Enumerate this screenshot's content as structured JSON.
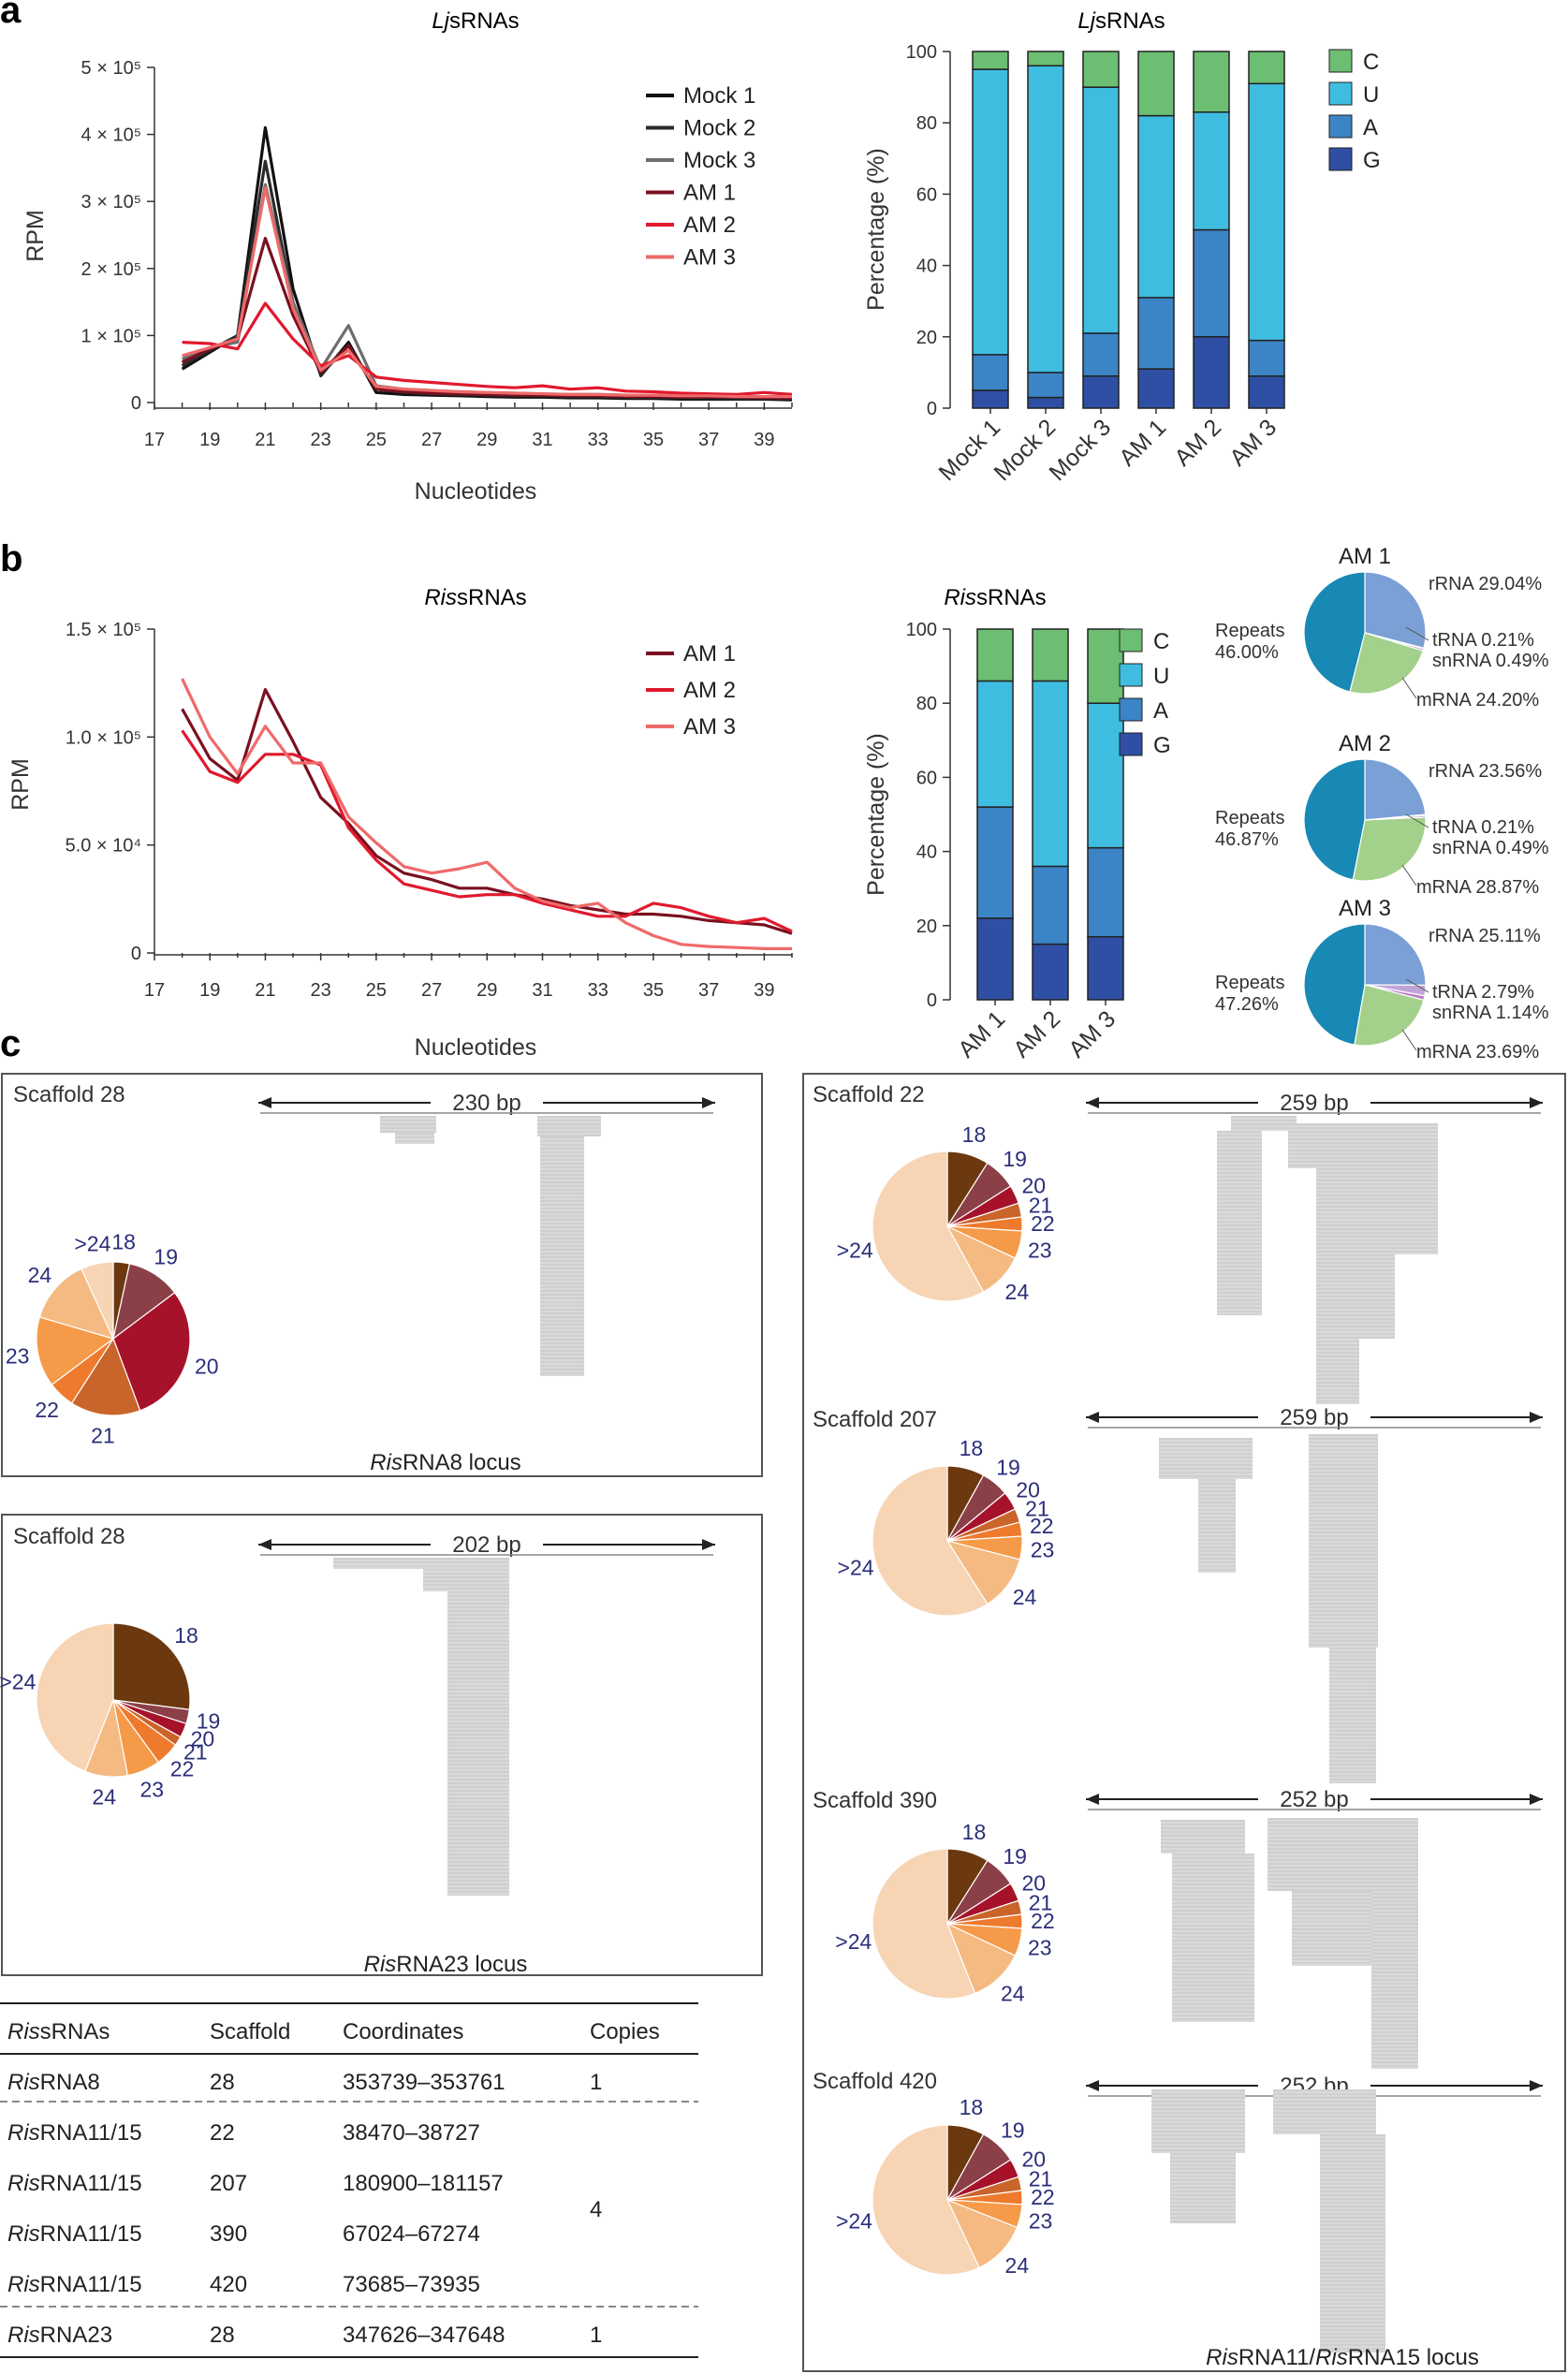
{
  "panels": {
    "a": "a",
    "b": "b",
    "c": "c"
  },
  "a_line": {
    "title_italic": "Lj",
    "title_rest": "sRNAs",
    "ylabel": "RPM",
    "xlabel": "Nucleotides",
    "ytick_labels": [
      "0",
      "1 × 10⁵",
      "2 × 10⁵",
      "3 × 10⁵",
      "4 × 10⁵",
      "5 × 10⁵"
    ],
    "xtick_labels": [
      "17",
      "19",
      "21",
      "23",
      "25",
      "27",
      "29",
      "31",
      "33",
      "35",
      "37",
      "39"
    ]
  },
  "a_bar": {
    "title_italic": "Lj",
    "title_rest": "sRNAs",
    "ylabel": "Percentage (%)",
    "ytick_labels": [
      "0",
      "20",
      "40",
      "60",
      "80",
      "100"
    ]
  },
  "b_line": {
    "title_italic": "Ris",
    "title_rest": "sRNAs",
    "ylabel": "RPM",
    "xlabel": "Nucleotides",
    "ytick_labels": [
      "0",
      "5.0 × 10⁴",
      "1.0 × 10⁵",
      "1.5 × 10⁵"
    ],
    "xtick_labels": [
      "17",
      "19",
      "21",
      "23",
      "25",
      "27",
      "29",
      "31",
      "33",
      "35",
      "37",
      "39"
    ]
  },
  "b_bar": {
    "title_italic": "Ris",
    "title_rest": "sRNAs",
    "ylabel": "Percentage (%)",
    "ytick_labels": [
      "0",
      "20",
      "40",
      "60",
      "80",
      "100"
    ]
  },
  "chart_data": [
    {
      "id": "a-line",
      "type": "line",
      "title": "LjsRNAs",
      "xlabel": "Nucleotides",
      "ylabel": "RPM",
      "xlim": [
        17,
        40
      ],
      "ylim": [
        0,
        500000
      ],
      "x": [
        18,
        19,
        20,
        21,
        22,
        23,
        24,
        25,
        26,
        27,
        28,
        29,
        30,
        31,
        32,
        33,
        34,
        35,
        36,
        37,
        38,
        39,
        40
      ],
      "series": [
        {
          "name": "Mock 1",
          "color": "#111111",
          "values": [
            50000,
            75000,
            100000,
            410000,
            170000,
            40000,
            90000,
            15000,
            12000,
            11000,
            10000,
            9000,
            8000,
            8000,
            7000,
            7000,
            6000,
            6000,
            5000,
            5000,
            5000,
            5000,
            4000
          ]
        },
        {
          "name": "Mock 2",
          "color": "#2a2a2a",
          "values": [
            55000,
            78000,
            100000,
            360000,
            150000,
            42000,
            85000,
            20000,
            15000,
            13000,
            12000,
            11000,
            10000,
            10000,
            9000,
            9000,
            8000,
            8000,
            7000,
            7000,
            6000,
            6000,
            6000
          ]
        },
        {
          "name": "Mock 3",
          "color": "#6e6e6e",
          "values": [
            65000,
            82000,
            90000,
            325000,
            150000,
            50000,
            115000,
            25000,
            20000,
            18000,
            16000,
            15000,
            14000,
            13000,
            12000,
            12000,
            11000,
            11000,
            10000,
            10000,
            9000,
            9000,
            9000
          ]
        },
        {
          "name": "AM 1",
          "color": "#7a1020",
          "values": [
            60000,
            80000,
            95000,
            245000,
            130000,
            45000,
            85000,
            20000,
            16000,
            14000,
            13000,
            12000,
            11000,
            11000,
            10000,
            10000,
            9000,
            9000,
            8000,
            8000,
            8000,
            7000,
            7000
          ]
        },
        {
          "name": "AM 2",
          "color": "#e1192d",
          "values": [
            90000,
            88000,
            80000,
            148000,
            95000,
            55000,
            70000,
            38000,
            33000,
            30000,
            27000,
            24000,
            22000,
            25000,
            20000,
            22000,
            17000,
            16000,
            14000,
            13000,
            12000,
            15000,
            12000
          ]
        },
        {
          "name": "AM 3",
          "color": "#ee6a6a",
          "values": [
            70000,
            82000,
            95000,
            320000,
            140000,
            48000,
            78000,
            24000,
            20000,
            18000,
            16000,
            15000,
            14000,
            13000,
            12000,
            12000,
            11000,
            11000,
            10000,
            10000,
            9000,
            9000,
            9000
          ]
        }
      ]
    },
    {
      "id": "a-bar",
      "type": "bar",
      "stacked": true,
      "title": "LjsRNAs",
      "ylabel": "Percentage (%)",
      "ylim": [
        0,
        100
      ],
      "categories": [
        "Mock 1",
        "Mock 2",
        "Mock 3",
        "AM 1",
        "AM 2",
        "AM 3"
      ],
      "legend": [
        "C",
        "U",
        "A",
        "G"
      ],
      "series": [
        {
          "name": "G",
          "color": "#2e4fa3",
          "values": [
            5,
            3,
            9,
            11,
            20,
            9
          ]
        },
        {
          "name": "A",
          "color": "#3b84c6",
          "values": [
            10,
            7,
            12,
            20,
            30,
            10
          ]
        },
        {
          "name": "U",
          "color": "#3fbde0",
          "values": [
            80,
            86,
            69,
            51,
            33,
            72
          ]
        },
        {
          "name": "C",
          "color": "#6cbe72",
          "values": [
            5,
            4,
            10,
            18,
            17,
            9
          ]
        }
      ]
    },
    {
      "id": "b-line",
      "type": "line",
      "title": "RissRNAs",
      "xlabel": "Nucleotides",
      "ylabel": "RPM",
      "xlim": [
        17,
        40
      ],
      "ylim": [
        0,
        150000
      ],
      "x": [
        18,
        19,
        20,
        21,
        22,
        23,
        24,
        25,
        26,
        27,
        28,
        29,
        30,
        31,
        32,
        33,
        34,
        35,
        36,
        37,
        38,
        39,
        40
      ],
      "series": [
        {
          "name": "AM 1",
          "color": "#7a1020",
          "values": [
            113000,
            90000,
            80000,
            122000,
            98000,
            72000,
            60000,
            45000,
            37000,
            34000,
            30000,
            30000,
            27000,
            25000,
            22000,
            20000,
            18000,
            18000,
            17000,
            15000,
            14000,
            13000,
            9000
          ]
        },
        {
          "name": "AM 2",
          "color": "#e1192d",
          "values": [
            103000,
            84000,
            79000,
            92000,
            92000,
            87000,
            58000,
            43000,
            32000,
            29000,
            26000,
            27000,
            27000,
            23000,
            20000,
            17000,
            17000,
            23000,
            21000,
            17000,
            14000,
            16000,
            10000
          ]
        },
        {
          "name": "AM 3",
          "color": "#ee6a6a",
          "values": [
            127000,
            100000,
            83000,
            105000,
            88000,
            88000,
            63000,
            51000,
            40000,
            37000,
            39000,
            42000,
            30000,
            24000,
            21000,
            23000,
            14000,
            8000,
            4000,
            3000,
            2500,
            2000,
            2000
          ]
        }
      ]
    },
    {
      "id": "b-bar",
      "type": "bar",
      "stacked": true,
      "title": "RissRNAs",
      "ylabel": "Percentage (%)",
      "ylim": [
        0,
        100
      ],
      "categories": [
        "AM 1",
        "AM 2",
        "AM 3"
      ],
      "legend": [
        "C",
        "U",
        "A",
        "G"
      ],
      "series": [
        {
          "name": "G",
          "color": "#2e4fa3",
          "values": [
            22,
            15,
            17
          ]
        },
        {
          "name": "A",
          "color": "#3b84c6",
          "values": [
            30,
            21,
            24
          ]
        },
        {
          "name": "U",
          "color": "#3fbde0",
          "values": [
            34,
            50,
            39
          ]
        },
        {
          "name": "C",
          "color": "#6cbe72",
          "values": [
            14,
            14,
            20
          ]
        }
      ]
    },
    {
      "id": "b-pies",
      "type": "pie",
      "charts": [
        {
          "title": "AM 1",
          "slices": [
            {
              "name": "rRNA",
              "pct": 29.04,
              "label": "rRNA 29.04%",
              "color": "#7aa0d6"
            },
            {
              "name": "tRNA",
              "pct": 0.21,
              "label": "tRNA 0.21%",
              "color": "#c2a3d8"
            },
            {
              "name": "snRNA",
              "pct": 0.49,
              "label": "snRNA 0.49%",
              "color": "#b77fc8"
            },
            {
              "name": "mRNA",
              "pct": 24.2,
              "label": "mRNA 24.20%",
              "color": "#a3d08a"
            },
            {
              "name": "Repeats",
              "pct": 46.0,
              "label1": "Repeats",
              "label2": "46.00%",
              "color": "#1889b4"
            }
          ]
        },
        {
          "title": "AM 2",
          "slices": [
            {
              "name": "rRNA",
              "pct": 23.56,
              "label": "rRNA 23.56%",
              "color": "#7aa0d6"
            },
            {
              "name": "tRNA",
              "pct": 0.21,
              "label": "tRNA 0.21%",
              "color": "#c2a3d8"
            },
            {
              "name": "snRNA",
              "pct": 0.49,
              "label": "snRNA 0.49%",
              "color": "#b77fc8"
            },
            {
              "name": "mRNA",
              "pct": 28.87,
              "label": "mRNA 28.87%",
              "color": "#a3d08a"
            },
            {
              "name": "Repeats",
              "pct": 46.87,
              "label1": "Repeats",
              "label2": "46.87%",
              "color": "#1889b4"
            }
          ]
        },
        {
          "title": "AM 3",
          "slices": [
            {
              "name": "rRNA",
              "pct": 25.11,
              "label": "rRNA 25.11%",
              "color": "#7aa0d6"
            },
            {
              "name": "tRNA",
              "pct": 2.79,
              "label": "tRNA 2.79%",
              "color": "#c2a3d8"
            },
            {
              "name": "snRNA",
              "pct": 1.14,
              "label": "snRNA 1.14%",
              "color": "#b77fc8"
            },
            {
              "name": "mRNA",
              "pct": 23.69,
              "label": "mRNA 23.69%",
              "color": "#a3d08a"
            },
            {
              "name": "Repeats",
              "pct": 47.26,
              "label1": "Repeats",
              "label2": "47.26%",
              "color": "#1889b4"
            }
          ]
        }
      ]
    },
    {
      "id": "c-size-pies",
      "type": "pie",
      "size_classes": [
        "18",
        "19",
        "20",
        "21",
        "22",
        "23",
        "24",
        ">24"
      ],
      "colors": [
        "#6b380f",
        "#8b4047",
        "#a6122a",
        "#c9652a",
        "#ee7a2d",
        "#f59a48",
        "#f5b982",
        "#f7d4b4"
      ],
      "charts": [
        {
          "scaffold": "Scaffold 28",
          "locus": "RisRNA8",
          "values": [
            3,
            10,
            26,
            13,
            5,
            13,
            12,
            6
          ]
        },
        {
          "scaffold": "Scaffold 28",
          "locus": "RisRNA23",
          "values": [
            27,
            3,
            3,
            2,
            5,
            7,
            9,
            44
          ]
        },
        {
          "scaffold": "Scaffold 22",
          "locus": "RisRNA11/RisRNA15",
          "values": [
            9,
            7,
            4,
            3,
            3,
            6,
            10,
            58
          ]
        },
        {
          "scaffold": "Scaffold 207",
          "locus": "RisRNA11/RisRNA15",
          "values": [
            8,
            6,
            4,
            3,
            3,
            5,
            12,
            59
          ]
        },
        {
          "scaffold": "Scaffold 390",
          "locus": "RisRNA11/RisRNA15",
          "values": [
            9,
            7,
            4,
            3,
            3,
            6,
            12,
            56
          ]
        },
        {
          "scaffold": "Scaffold 420",
          "locus": "RisRNA11/RisRNA15",
          "values": [
            8,
            8,
            4,
            3,
            3,
            5,
            12,
            57
          ]
        }
      ]
    }
  ],
  "legend_a": [
    {
      "label": "Mock 1",
      "color": "#111111"
    },
    {
      "label": "Mock 2",
      "color": "#2a2a2a"
    },
    {
      "label": "Mock 3",
      "color": "#6e6e6e"
    },
    {
      "label": "AM 1",
      "color": "#7a1020"
    },
    {
      "label": "AM 2",
      "color": "#e1192d"
    },
    {
      "label": "AM 3",
      "color": "#ee6a6a"
    }
  ],
  "legend_b": [
    {
      "label": "AM 1",
      "color": "#7a1020"
    },
    {
      "label": "AM 2",
      "color": "#e1192d"
    },
    {
      "label": "AM 3",
      "color": "#ee6a6a"
    }
  ],
  "nuc_legend": [
    {
      "label": "C",
      "color": "#6cbe72"
    },
    {
      "label": "U",
      "color": "#3fbde0"
    },
    {
      "label": "A",
      "color": "#3b84c6"
    },
    {
      "label": "G",
      "color": "#2e4fa3"
    }
  ],
  "c_boxes": [
    {
      "scaffold": "Scaffold 28",
      "bp": "230 bp",
      "locus_italic": "Ris",
      "locus_rest": "RNA8  locus",
      "size_labels": [
        "18",
        "19",
        "20",
        "21",
        "22",
        "23",
        "24",
        ">24"
      ]
    },
    {
      "scaffold": "Scaffold 28",
      "bp": "202 bp",
      "locus_italic": "Ris",
      "locus_rest": "RNA23 locus",
      "size_labels": [
        "18",
        "19",
        "20",
        "21",
        "22",
        "23",
        "24",
        ">24"
      ]
    },
    {
      "scaffold": "Scaffold 22",
      "bp": "259 bp",
      "size_labels": [
        "18",
        "19",
        "20",
        "21",
        "22",
        "23",
        "24",
        ">24"
      ]
    },
    {
      "scaffold": "Scaffold 207",
      "bp": "259 bp",
      "size_labels": [
        "18",
        "19",
        "20",
        "21",
        "22",
        "23",
        "24",
        ">24"
      ]
    },
    {
      "scaffold": "Scaffold 390",
      "bp": "252 bp",
      "size_labels": [
        "18",
        "19",
        "20",
        "21",
        "22",
        "23",
        "24",
        ">24"
      ]
    },
    {
      "scaffold": "Scaffold 420",
      "bp": "252 bp",
      "size_labels": [
        "18",
        "19",
        "20",
        "21",
        "22",
        "23",
        "24",
        ">24"
      ]
    }
  ],
  "c_right_locus": {
    "it1": "Ris",
    "mid": "RNA11/",
    "it2": "Ris",
    "rest": "RNA15 locus"
  },
  "table": {
    "headers": [
      "RissRNAs",
      "Scaffold",
      "Coordinates",
      "Copies"
    ],
    "rows": [
      {
        "name_italic": "Ris",
        "name_rest": "RNA8",
        "scaffold": "28",
        "coords": "353739–353761"
      },
      {
        "name_italic": "Ris",
        "name_rest": "RNA11/15",
        "scaffold": "22",
        "coords": "38470–38727"
      },
      {
        "name_italic": "Ris",
        "name_rest": "RNA11/15",
        "scaffold": "207",
        "coords": "180900–181157"
      },
      {
        "name_italic": "Ris",
        "name_rest": "RNA11/15",
        "scaffold": "390",
        "coords": "67024–67274"
      },
      {
        "name_italic": "Ris",
        "name_rest": "RNA11/15",
        "scaffold": "420",
        "coords": "73685–73935"
      },
      {
        "name_italic": "Ris",
        "name_rest": "RNA23",
        "scaffold": "28",
        "coords": "347626–347648"
      }
    ],
    "copies": [
      "1",
      "4",
      "1"
    ]
  }
}
